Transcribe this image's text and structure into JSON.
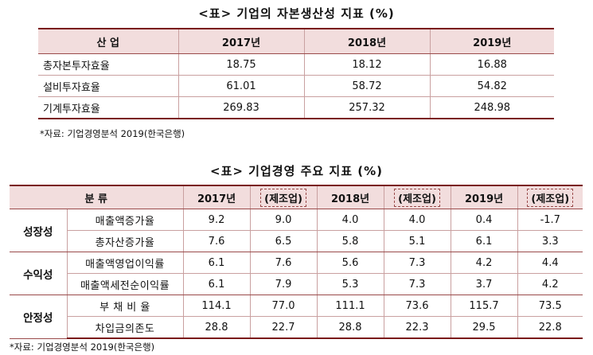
{
  "table1": {
    "title": "<표> 기업의 자본생산성 지표 (%)",
    "headers": [
      "산 업",
      "2017년",
      "2018년",
      "2019년"
    ],
    "rows": [
      {
        "label": "총자본투자효율",
        "values": [
          "18.75",
          "18.12",
          "16.88"
        ]
      },
      {
        "label": "설비투자효율",
        "values": [
          "61.01",
          "58.72",
          "54.82"
        ]
      },
      {
        "label": "기계투자효율",
        "values": [
          "269.83",
          "257.32",
          "248.98"
        ]
      }
    ],
    "source": "*자료: 기업경영분석 2019(한국은행)"
  },
  "table2": {
    "title": "<표> 기업경영 주요 지표 (%)",
    "headers": {
      "category": "분 류",
      "y2017": "2017년",
      "y2018": "2018년",
      "y2019": "2019년",
      "mfg": "(제조업)"
    },
    "groups": [
      {
        "name": "성장성",
        "rows": [
          {
            "label": "매출액증가율",
            "values": [
              "9.2",
              "9.0",
              "4.0",
              "4.0",
              "0.4",
              "-1.7"
            ]
          },
          {
            "label": "총자산증가율",
            "values": [
              "7.6",
              "6.5",
              "5.8",
              "5.1",
              "6.1",
              "3.3"
            ]
          }
        ]
      },
      {
        "name": "수익성",
        "rows": [
          {
            "label": "매출액영업이익률",
            "values": [
              "6.1",
              "7.6",
              "5.6",
              "7.3",
              "4.2",
              "4.4"
            ]
          },
          {
            "label": "매출액세전순이익률",
            "values": [
              "6.1",
              "7.9",
              "5.3",
              "7.3",
              "3.7",
              "4.2"
            ]
          }
        ]
      },
      {
        "name": "안정성",
        "rows": [
          {
            "label": "부 채 비 율",
            "values": [
              "114.1",
              "77.0",
              "111.1",
              "73.6",
              "115.7",
              "73.5"
            ]
          },
          {
            "label": "차입금의존도",
            "values": [
              "28.8",
              "22.7",
              "28.8",
              "22.3",
              "29.5",
              "22.8"
            ]
          }
        ]
      }
    ],
    "source": "*자료: 기업경영분석 2019(한국은행)"
  }
}
